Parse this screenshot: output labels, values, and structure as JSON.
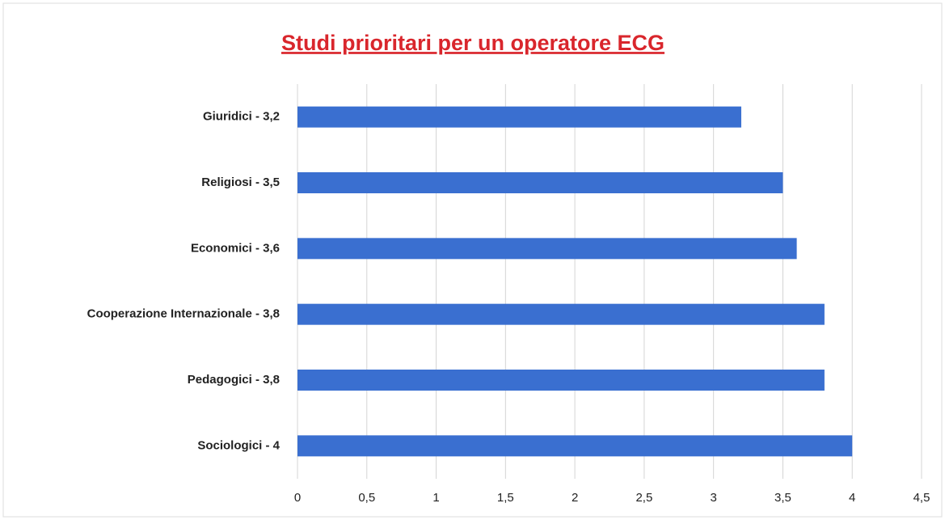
{
  "chart_data": {
    "type": "bar",
    "orientation": "horizontal",
    "title": "Studi prioritari per un operatore ECG",
    "categories": [
      "Giuridici - 3,2",
      "Religiosi - 3,5",
      "Economici - 3,6",
      "Cooperazione Internazionale - 3,8",
      "Pedagogici - 3,8",
      "Sociologici - 4"
    ],
    "values": [
      3.2,
      3.5,
      3.6,
      3.8,
      3.8,
      4
    ],
    "color": "#3a6fd0",
    "xlim": [
      0,
      4.5
    ],
    "xticks": [
      0,
      {
        "value": 0.5,
        "label": "0,5"
      },
      1,
      {
        "value": 1.5,
        "label": "1,5"
      },
      2,
      {
        "value": 2.5,
        "label": "2,5"
      },
      3,
      {
        "value": 3.5,
        "label": "3,5"
      },
      4,
      {
        "value": 4.5,
        "label": "4,5"
      }
    ],
    "grid": true
  }
}
